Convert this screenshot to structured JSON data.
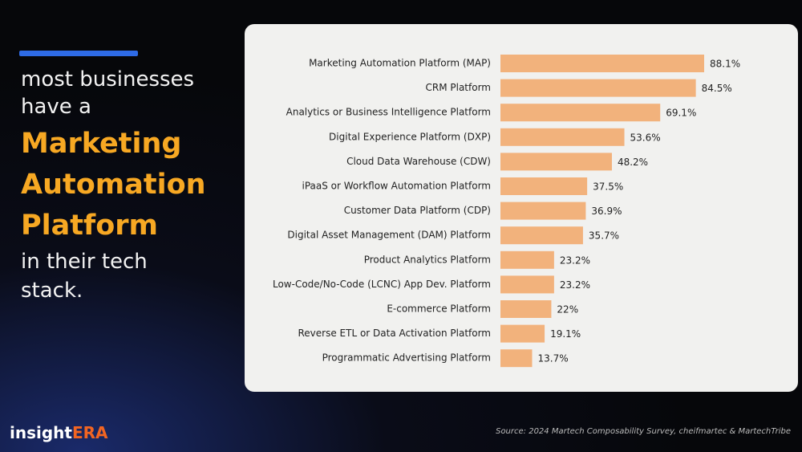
{
  "headline": {
    "lead": [
      "most businesses",
      "have a"
    ],
    "highlight": [
      "Marketing",
      "Automation",
      "Platform"
    ],
    "tail": [
      "in their tech",
      "stack."
    ]
  },
  "chart_data": {
    "type": "bar",
    "orientation": "horizontal",
    "color": "#f2b27c",
    "categories": [
      "Marketing Automation Platform (MAP)",
      "CRM Platform",
      "Analytics or Business Intelligence Platform",
      "Digital Experience Platform (DXP)",
      "Cloud Data Warehouse (CDW)",
      "iPaaS or Workflow Automation Platform",
      "Customer Data Platform (CDP)",
      "Digital Asset Management (DAM) Platform",
      "Product Analytics Platform",
      "Low-Code/No-Code (LCNC) App Dev. Platform",
      "E-commerce Platform",
      "Reverse ETL or Data Activation Platform",
      "Programmatic Advertising Platform"
    ],
    "values": [
      88.1,
      84.5,
      69.1,
      53.6,
      48.2,
      37.5,
      36.9,
      35.7,
      23.2,
      23.2,
      22,
      19.1,
      13.7
    ],
    "value_labels": [
      "88.1%",
      "84.5%",
      "69.1%",
      "53.6%",
      "48.2%",
      "37.5%",
      "36.9%",
      "35.7%",
      "23.2%",
      "23.2%",
      "22%",
      "19.1%",
      "13.7%"
    ]
  },
  "logo": {
    "part1": "insight",
    "part2": "ERA"
  },
  "source": "Source: 2024 Martech Composability Survey, cheifmartec & MartechTribe"
}
